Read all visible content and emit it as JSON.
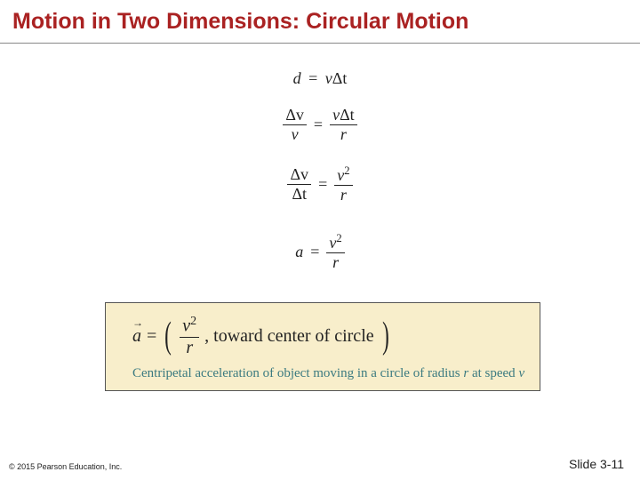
{
  "title": "Motion in Two Dimensions: Circular Motion",
  "eq1": {
    "lhs": "d",
    "eq": "=",
    "rhs_v": "v",
    "rhs_dt": "Δt"
  },
  "eq2": {
    "lfrac_num": "Δv",
    "lfrac_den": "v",
    "eq": "=",
    "rfrac_num_v": "v",
    "rfrac_num_dt": "Δt",
    "rfrac_den": "r"
  },
  "eq3": {
    "lfrac_num": "Δv",
    "lfrac_den": "Δt",
    "eq": "=",
    "rfrac_num_base": "v",
    "rfrac_num_exp": "2",
    "rfrac_den": "r"
  },
  "eq4": {
    "lhs": "a",
    "eq": "=",
    "rfrac_num_base": "v",
    "rfrac_num_exp": "2",
    "rfrac_den": "r"
  },
  "box": {
    "bg": "#f8eecb",
    "border": "#555555",
    "caption_color": "#3b7a80",
    "lhs": "a",
    "eq": "=",
    "frac_num_base": "v",
    "frac_num_exp": "2",
    "frac_den": "r",
    "comma_text": ", toward center of circle",
    "caption_pre": "Centripetal acceleration of object moving in a circle of radius ",
    "caption_r": "r",
    "caption_mid": " at speed ",
    "caption_v": "v"
  },
  "footer": {
    "copyright": "© 2015 Pearson Education, Inc.",
    "slide": "Slide 3-11"
  }
}
